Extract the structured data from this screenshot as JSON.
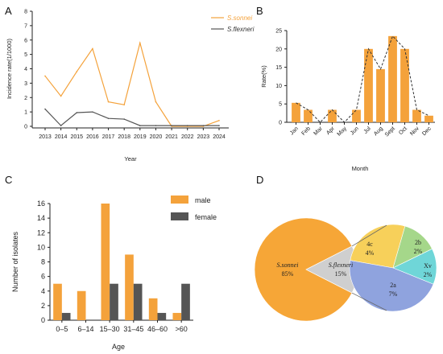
{
  "panels": {
    "a": "A",
    "b": "B",
    "c": "C",
    "d": "D"
  },
  "colors": {
    "orange": "#f4a23b",
    "dark": "#555555",
    "pie_sonnei": "#f6a637",
    "pie_flexneri": "#cfcfcf",
    "pie_4c": "#f7d05a",
    "pie_2b": "#a5d78a",
    "pie_xv": "#6fd6d8",
    "pie_2a": "#8fa3de"
  },
  "chart_data": [
    {
      "type": "line",
      "panel": "A",
      "title": "",
      "xlabel": "Year",
      "ylabel": "Incidence rate(1/1000)",
      "x": [
        "2013",
        "2014",
        "2015",
        "2016",
        "2017",
        "2018",
        "2019",
        "2020",
        "2021",
        "2022",
        "2023",
        "2024"
      ],
      "ylim": [
        0,
        8
      ],
      "yticks": [
        0,
        1,
        2,
        3,
        4,
        5,
        6,
        7,
        8
      ],
      "legend_position": "top-right",
      "series": [
        {
          "name": "S.sonnei",
          "color": "#f4a23b",
          "values": [
            3.5,
            2.1,
            3.8,
            5.4,
            1.7,
            1.5,
            5.8,
            1.7,
            0,
            0,
            0,
            0.4
          ]
        },
        {
          "name": "S.flexneri",
          "color": "#555555",
          "values": [
            1.2,
            0.05,
            0.95,
            1.0,
            0.55,
            0.5,
            0.05,
            0.05,
            0.05,
            0.05,
            0.05,
            0.05
          ]
        }
      ]
    },
    {
      "type": "bar",
      "panel": "B",
      "title": "",
      "xlabel": "Month",
      "ylabel": "Rate(%)",
      "categories": [
        "Jan",
        "Feb",
        "Mar",
        "Apr",
        "May",
        "Jun",
        "Jul",
        "Aug",
        "Sept",
        "Oct",
        "Nov",
        "Dec"
      ],
      "values": [
        5.3,
        3.4,
        0,
        3.4,
        0,
        3.4,
        20,
        14.5,
        23.5,
        20,
        3.4,
        1.8
      ],
      "ylim": [
        0,
        25
      ],
      "yticks": [
        0,
        5,
        10,
        15,
        20,
        25
      ],
      "overlay": "dashed-line",
      "color": "#f4a23b"
    },
    {
      "type": "bar",
      "panel": "C",
      "title": "",
      "xlabel": "Age",
      "ylabel": "Number of isolates",
      "categories": [
        "0–5",
        "6–14",
        "15–30",
        "31–45",
        "46–60",
        ">60"
      ],
      "ylim": [
        0,
        16
      ],
      "yticks": [
        0,
        2,
        4,
        6,
        8,
        10,
        12,
        14,
        16
      ],
      "legend_position": "top-right",
      "series": [
        {
          "name": "male",
          "color": "#f4a23b",
          "values": [
            5,
            4,
            16,
            9,
            3,
            1
          ]
        },
        {
          "name": "female",
          "color": "#555555",
          "values": [
            1,
            0,
            5,
            5,
            1,
            5
          ]
        }
      ]
    },
    {
      "type": "pie",
      "panel": "D",
      "title": "",
      "main": [
        {
          "label": "S.sonnei",
          "pct": "85%",
          "value": 85
        },
        {
          "label": "S.flexneri",
          "pct": "15%",
          "value": 15
        }
      ],
      "breakdown": [
        {
          "label": "4c",
          "pct": "4%",
          "value": 4
        },
        {
          "label": "2b",
          "pct": "2%",
          "value": 2
        },
        {
          "label": "Xv",
          "pct": "2%",
          "value": 2
        },
        {
          "label": "2a",
          "pct": "7%",
          "value": 7
        }
      ]
    }
  ]
}
